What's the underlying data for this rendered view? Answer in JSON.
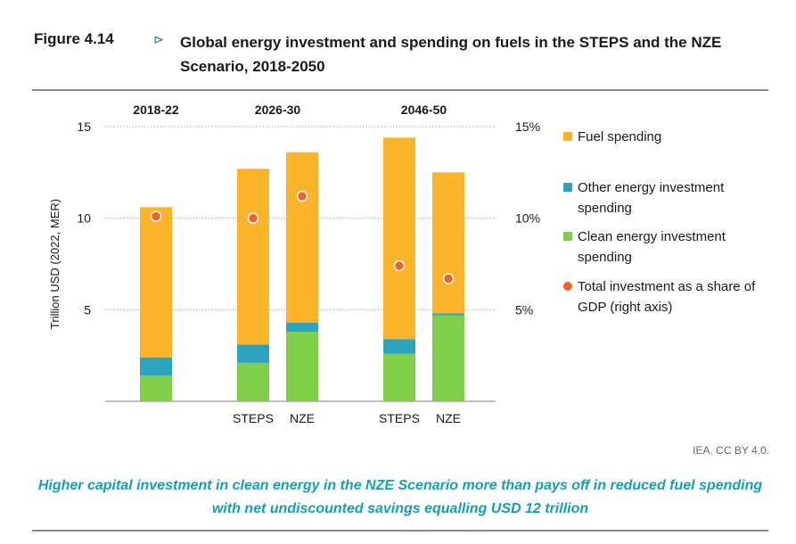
{
  "figure": {
    "label": "Figure 4.14",
    "arrow": "⊳",
    "title": "Global energy investment and spending on fuels in the STEPS and the NZE Scenario, 2018-2050",
    "credit": "IEA. CC BY 4.0.",
    "caption": "Higher capital investment in clean energy in the NZE Scenario more than pays off in reduced fuel spending with net undiscounted savings equalling USD 12 trillion"
  },
  "colors": {
    "fuel": "#fbb42a",
    "other": "#2ea3c0",
    "clean": "#7fcf4a",
    "share": "#e8662e"
  },
  "chart_data": {
    "type": "bar",
    "stacked": true,
    "ylabel": "Trillion USD (2022, MER)",
    "ylim": [
      0,
      15
    ],
    "yticks": [
      5,
      10,
      15
    ],
    "ytick_labels": [
      "5",
      "10",
      "15"
    ],
    "y2lim": [
      0,
      15
    ],
    "y2ticks": [
      5,
      10,
      15
    ],
    "y2tick_labels": [
      "5%",
      "10%",
      "15%"
    ],
    "grid": true,
    "groups": [
      "2018-22",
      "2026-30",
      "2046-50"
    ],
    "categories": [
      "",
      "STEPS",
      "NZE",
      "STEPS",
      "NZE"
    ],
    "category_group": [
      0,
      1,
      1,
      2,
      2
    ],
    "series": [
      {
        "name": "Clean energy investment spending",
        "key": "clean",
        "values": [
          1.4,
          2.1,
          3.8,
          2.6,
          4.7
        ]
      },
      {
        "name": "Other energy investment spending",
        "key": "other",
        "values": [
          1.0,
          1.0,
          0.5,
          0.8,
          0.1
        ]
      },
      {
        "name": "Fuel spending",
        "key": "fuel",
        "values": [
          8.2,
          9.6,
          9.3,
          11.0,
          7.7
        ]
      }
    ],
    "share_of_gdp": {
      "name": "Total investment as a share of GDP (right axis)",
      "values": [
        10.1,
        10.0,
        11.2,
        7.4,
        6.7
      ]
    },
    "legend": [
      {
        "key": "fuel",
        "label": "Fuel spending"
      },
      {
        "key": "other",
        "label": "Other energy investment spending"
      },
      {
        "key": "clean",
        "label": "Clean energy investment spending"
      },
      {
        "key": "share",
        "label": "Total investment as a share of GDP (right axis)"
      }
    ],
    "legend_position": "right"
  }
}
